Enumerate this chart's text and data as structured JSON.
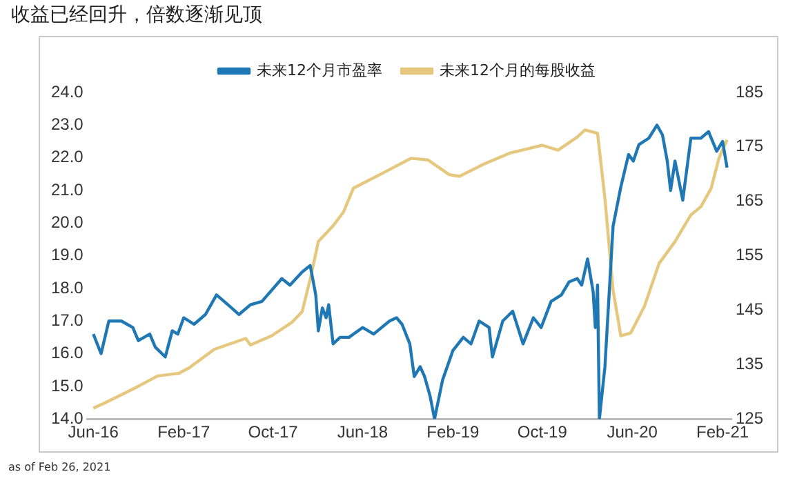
{
  "chart_data": {
    "type": "line",
    "title": "收益已经回升，倍数逐渐见顶",
    "annotations": [
      "as of Feb 26, 2021"
    ],
    "legend": "top",
    "grid": false,
    "marker": "none",
    "line_style": "solid",
    "xlim": [
      "2016-05-16",
      "2021-02-25"
    ],
    "xticks": [
      {
        "value": "2016-06-01",
        "label": "Jun-16"
      },
      {
        "value": "2017-02-01",
        "label": "Feb-17"
      },
      {
        "value": "2017-10-01",
        "label": "Oct-17"
      },
      {
        "value": "2018-06-01",
        "label": "Jun-18"
      },
      {
        "value": "2019-02-01",
        "label": "Feb-19"
      },
      {
        "value": "2019-10-01",
        "label": "Oct-19"
      },
      {
        "value": "2020-06-01",
        "label": "Jun-20"
      },
      {
        "value": "2021-02-01",
        "label": "Feb-21"
      }
    ],
    "ylim": [
      14,
      24
    ],
    "yticks": [
      {
        "value": 14,
        "label": "14.0"
      },
      {
        "value": 15,
        "label": "15.0"
      },
      {
        "value": 16,
        "label": "16.0"
      },
      {
        "value": 17,
        "label": "17.0"
      },
      {
        "value": 18,
        "label": "18.0"
      },
      {
        "value": 19,
        "label": "19.0"
      },
      {
        "value": 20,
        "label": "20.0"
      },
      {
        "value": 21,
        "label": "21.0"
      },
      {
        "value": 22,
        "label": "22.0"
      },
      {
        "value": 23,
        "label": "23.0"
      },
      {
        "value": 24,
        "label": "24.0"
      }
    ],
    "y2lim": [
      125,
      185
    ],
    "y2ticks": [
      125,
      135,
      145,
      155,
      165,
      175,
      185
    ],
    "series": [
      {
        "name": "未来12个月市盈率",
        "color": "#1f78b4",
        "x": [
          "2016-06-01",
          "2016-06-22",
          "2016-07-13",
          "2016-08-16",
          "2016-09-16",
          "2016-10-01",
          "2016-11-01",
          "2016-11-16",
          "2016-12-13",
          "2017-01-01",
          "2017-01-16",
          "2017-02-01",
          "2017-03-01",
          "2017-04-01",
          "2017-05-01",
          "2017-06-01",
          "2017-07-01",
          "2017-08-01",
          "2017-09-01",
          "2017-10-25",
          "2017-11-16",
          "2017-12-19",
          "2018-01-10",
          "2018-01-25",
          "2018-02-01",
          "2018-02-12",
          "2018-02-22",
          "2018-03-01",
          "2018-03-13",
          "2018-04-01",
          "2018-04-25",
          "2018-06-01",
          "2018-07-01",
          "2018-08-13",
          "2018-09-01",
          "2018-09-16",
          "2018-10-07",
          "2018-10-19",
          "2018-11-04",
          "2018-11-16",
          "2018-12-01",
          "2018-12-13",
          "2019-01-04",
          "2019-02-01",
          "2019-03-01",
          "2019-03-22",
          "2019-04-13",
          "2019-05-10",
          "2019-05-19",
          "2019-06-16",
          "2019-07-13",
          "2019-08-10",
          "2019-09-07",
          "2019-09-28",
          "2019-10-25",
          "2019-11-22",
          "2019-12-13",
          "2020-01-04",
          "2020-01-16",
          "2020-02-01",
          "2020-02-16",
          "2020-02-22",
          "2020-02-28",
          "2020-03-04",
          "2020-03-19",
          "2020-04-10",
          "2020-05-01",
          "2020-05-22",
          "2020-06-04",
          "2020-06-19",
          "2020-07-16",
          "2020-08-07",
          "2020-08-22",
          "2020-09-04",
          "2020-09-13",
          "2020-09-25",
          "2020-10-16",
          "2020-11-07",
          "2020-12-04",
          "2020-12-25",
          "2021-01-16",
          "2021-02-01",
          "2021-02-07",
          "2021-02-13"
        ],
        "values": [
          16.6,
          16.0,
          17.0,
          17.0,
          16.8,
          16.4,
          16.6,
          16.2,
          15.9,
          16.7,
          16.6,
          17.1,
          16.9,
          17.2,
          17.8,
          17.5,
          17.2,
          17.5,
          17.6,
          18.3,
          18.1,
          18.5,
          18.7,
          17.8,
          16.7,
          17.4,
          17.1,
          17.5,
          16.3,
          16.5,
          16.5,
          16.8,
          16.6,
          17.0,
          17.1,
          16.9,
          16.3,
          15.3,
          15.6,
          15.3,
          14.7,
          14.0,
          15.2,
          16.1,
          16.5,
          16.3,
          17.0,
          16.8,
          15.9,
          17.0,
          17.3,
          16.3,
          17.1,
          16.8,
          17.6,
          17.8,
          18.2,
          18.3,
          18.1,
          18.9,
          17.9,
          16.8,
          18.1,
          14.0,
          15.6,
          19.9,
          21.1,
          22.1,
          21.9,
          22.4,
          22.6,
          23.0,
          22.7,
          21.9,
          21.0,
          21.9,
          20.7,
          22.6,
          22.6,
          22.8,
          22.2,
          22.5,
          22.1,
          21.7
        ]
      },
      {
        "name": "未来12个月的每股收益",
        "color": "#e6c77e",
        "axis": "y2",
        "x": [
          "2016-06-01",
          "2016-07-04",
          "2016-09-28",
          "2016-11-22",
          "2017-01-19",
          "2017-02-16",
          "2017-04-25",
          "2017-07-19",
          "2017-08-01",
          "2017-09-28",
          "2017-11-22",
          "2017-12-19",
          "2018-01-10",
          "2018-02-01",
          "2018-03-13",
          "2018-04-10",
          "2018-05-07",
          "2018-08-01",
          "2018-10-10",
          "2018-11-25",
          "2019-01-22",
          "2019-02-19",
          "2019-04-28",
          "2019-07-07",
          "2019-10-01",
          "2019-11-13",
          "2020-01-04",
          "2020-01-25",
          "2020-02-28",
          "2020-03-19",
          "2020-04-10",
          "2020-05-01",
          "2020-05-28",
          "2020-07-04",
          "2020-08-13",
          "2020-09-25",
          "2020-11-07",
          "2020-12-04",
          "2021-01-01",
          "2021-01-22",
          "2021-02-13"
        ],
        "values": [
          127.0,
          128.0,
          130.9,
          132.9,
          133.4,
          134.4,
          137.8,
          139.8,
          138.6,
          140.3,
          142.8,
          144.7,
          150.7,
          157.6,
          160.5,
          163.0,
          167.4,
          170.4,
          172.9,
          172.6,
          169.9,
          169.6,
          171.9,
          173.9,
          175.3,
          174.4,
          176.8,
          178.1,
          177.5,
          165.5,
          148.7,
          140.3,
          140.8,
          145.7,
          153.6,
          157.6,
          162.5,
          164.0,
          167.4,
          172.9,
          176.3
        ]
      }
    ]
  }
}
